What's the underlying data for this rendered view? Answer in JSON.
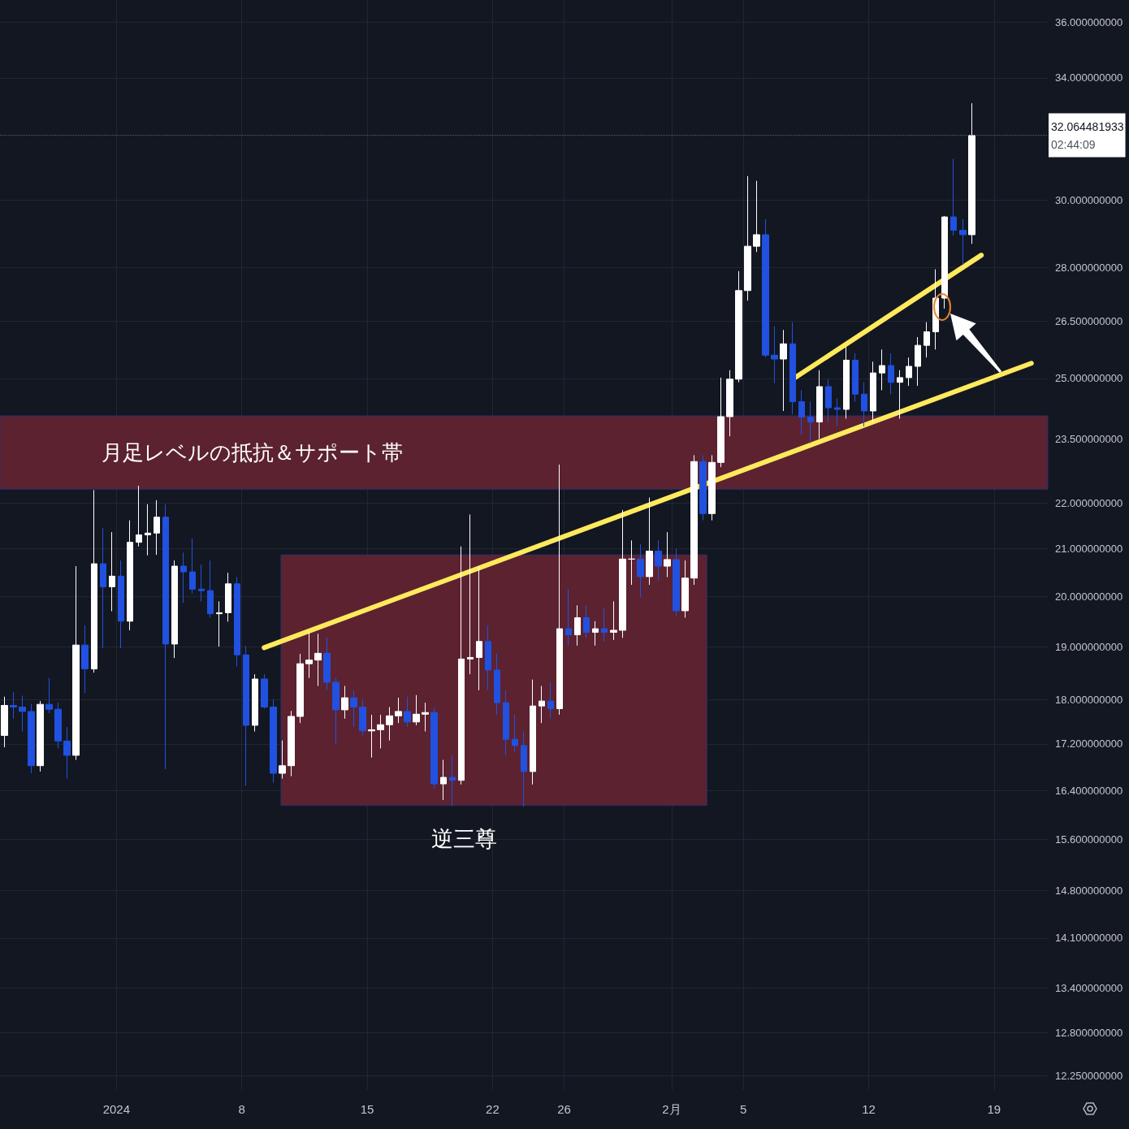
{
  "chart_data": {
    "type": "candlestick",
    "series": [
      {
        "x": [
          "2023-12-25T18:00",
          "2023-12-26T06:00",
          "2023-12-26T18:00",
          "2023-12-27T06:00",
          "2023-12-27T18:00",
          "2023-12-28T06:00",
          "2023-12-28T18:00",
          "2023-12-29T06:00",
          "2023-12-29T18:00",
          "2023-12-30T06:00",
          "2023-12-30T18:00",
          "2023-12-31T06:00",
          "2023-12-31T18:00",
          "2024-01-01T06:00",
          "2024-01-01T18:00",
          "2024-01-02T06:00",
          "2024-01-02T18:00",
          "2024-01-03T06:00",
          "2024-01-03T18:00",
          "2024-01-04T06:00",
          "2024-01-04T18:00",
          "2024-01-05T06:00",
          "2024-01-05T18:00",
          "2024-01-06T06:00",
          "2024-01-06T18:00",
          "2024-01-07T06:00",
          "2024-01-07T18:00",
          "2024-01-08T06:00",
          "2024-01-08T18:00",
          "2024-01-09T06:00",
          "2024-01-09T18:00",
          "2024-01-10T06:00",
          "2024-01-10T18:00",
          "2024-01-11T06:00",
          "2024-01-11T18:00",
          "2024-01-12T06:00",
          "2024-01-12T18:00",
          "2024-01-13T06:00",
          "2024-01-13T18:00",
          "2024-01-14T06:00",
          "2024-01-14T18:00",
          "2024-01-15T06:00",
          "2024-01-15T18:00",
          "2024-01-16T06:00",
          "2024-01-16T18:00",
          "2024-01-17T06:00",
          "2024-01-17T18:00",
          "2024-01-18T06:00",
          "2024-01-18T18:00",
          "2024-01-19T06:00",
          "2024-01-19T18:00",
          "2024-01-20T06:00",
          "2024-01-20T18:00",
          "2024-01-21T06:00",
          "2024-01-21T18:00",
          "2024-01-22T06:00",
          "2024-01-22T18:00",
          "2024-01-23T06:00",
          "2024-01-23T18:00",
          "2024-01-24T06:00",
          "2024-01-24T18:00",
          "2024-01-25T06:00",
          "2024-01-25T18:00",
          "2024-01-26T06:00",
          "2024-01-26T18:00",
          "2024-01-27T06:00",
          "2024-01-27T18:00",
          "2024-01-28T06:00",
          "2024-01-28T18:00",
          "2024-01-29T06:00",
          "2024-01-29T18:00",
          "2024-01-30T06:00",
          "2024-01-30T18:00",
          "2024-01-31T06:00",
          "2024-01-31T18:00",
          "2024-02-01T06:00",
          "2024-02-01T18:00",
          "2024-02-02T06:00",
          "2024-02-02T18:00",
          "2024-02-03T06:00",
          "2024-02-03T18:00",
          "2024-02-04T06:00",
          "2024-02-04T18:00",
          "2024-02-05T06:00",
          "2024-02-05T18:00",
          "2024-02-06T06:00",
          "2024-02-06T18:00",
          "2024-02-07T06:00",
          "2024-02-07T18:00",
          "2024-02-08T06:00",
          "2024-02-08T18:00",
          "2024-02-09T06:00",
          "2024-02-09T18:00",
          "2024-02-10T06:00",
          "2024-02-10T18:00",
          "2024-02-11T06:00",
          "2024-02-11T18:00",
          "2024-02-12T06:00",
          "2024-02-12T18:00",
          "2024-02-13T06:00",
          "2024-02-13T18:00",
          "2024-02-14T06:00",
          "2024-02-14T18:00",
          "2024-02-15T06:00",
          "2024-02-15T18:00",
          "2024-02-16T06:00",
          "2024-02-16T18:00",
          "2024-02-17T06:00",
          "2024-02-17T18:00"
        ],
        "ohlc": [
          [
            17.35,
            18.05,
            17.14,
            17.89
          ],
          [
            17.89,
            18.14,
            17.65,
            17.86
          ],
          [
            17.86,
            18.07,
            17.42,
            17.78
          ],
          [
            17.78,
            17.92,
            16.69,
            16.82
          ],
          [
            16.82,
            17.97,
            16.72,
            17.91
          ],
          [
            17.91,
            18.4,
            17.75,
            17.82
          ],
          [
            17.82,
            17.94,
            17.12,
            17.25
          ],
          [
            17.25,
            17.5,
            16.6,
            17.0
          ],
          [
            17.0,
            20.63,
            16.92,
            19.03
          ],
          [
            19.03,
            19.42,
            18.12,
            18.57
          ],
          [
            18.57,
            22.3,
            18.5,
            20.68
          ],
          [
            20.68,
            21.45,
            18.97,
            20.2
          ],
          [
            20.2,
            21.36,
            19.7,
            20.42
          ],
          [
            20.42,
            20.75,
            18.97,
            19.5
          ],
          [
            19.5,
            21.62,
            19.32,
            21.14
          ],
          [
            21.14,
            22.4,
            21.05,
            21.3
          ],
          [
            21.3,
            21.98,
            20.86,
            21.34
          ],
          [
            21.34,
            22.07,
            20.87,
            21.69
          ],
          [
            21.69,
            21.98,
            16.76,
            19.05
          ],
          [
            19.05,
            20.75,
            18.78,
            20.63
          ],
          [
            20.63,
            20.92,
            19.87,
            20.51
          ],
          [
            20.51,
            21.22,
            20.06,
            20.15
          ],
          [
            20.15,
            20.66,
            19.9,
            20.12
          ],
          [
            20.12,
            20.75,
            19.57,
            19.65
          ],
          [
            19.65,
            19.9,
            19.0,
            19.67
          ],
          [
            19.67,
            20.49,
            19.49,
            20.26
          ],
          [
            20.26,
            20.4,
            18.62,
            18.84
          ],
          [
            18.84,
            19.01,
            16.48,
            17.53
          ],
          [
            17.53,
            18.47,
            17.42,
            18.38
          ],
          [
            18.38,
            18.47,
            17.83,
            17.86
          ],
          [
            17.86,
            18.0,
            16.53,
            16.69
          ],
          [
            16.69,
            17.26,
            16.6,
            16.82
          ],
          [
            16.82,
            17.79,
            16.64,
            17.69
          ],
          [
            17.69,
            18.86,
            17.57,
            18.67
          ],
          [
            18.67,
            19.28,
            18.4,
            18.74
          ],
          [
            18.74,
            19.25,
            18.25,
            18.87
          ],
          [
            18.87,
            19.18,
            18.17,
            18.32
          ],
          [
            18.32,
            18.4,
            17.19,
            17.81
          ],
          [
            17.81,
            18.25,
            17.65,
            18.03
          ],
          [
            18.03,
            18.17,
            17.5,
            17.86
          ],
          [
            17.86,
            18.0,
            17.35,
            17.43
          ],
          [
            17.43,
            17.72,
            16.96,
            17.45
          ],
          [
            17.45,
            17.72,
            17.12,
            17.54
          ],
          [
            17.54,
            17.86,
            17.26,
            17.7
          ],
          [
            17.7,
            18.03,
            17.57,
            17.78
          ],
          [
            17.78,
            18.05,
            17.5,
            17.59
          ],
          [
            17.59,
            18.08,
            17.53,
            17.73
          ],
          [
            17.73,
            17.94,
            17.42,
            17.76
          ],
          [
            17.76,
            17.86,
            16.43,
            16.51
          ],
          [
            16.51,
            16.92,
            16.24,
            16.62
          ],
          [
            16.62,
            17.0,
            16.14,
            16.57
          ],
          [
            16.57,
            21.05,
            16.5,
            18.76
          ],
          [
            18.76,
            21.75,
            18.47,
            18.79
          ],
          [
            18.79,
            20.63,
            18.17,
            19.1
          ],
          [
            19.1,
            19.42,
            18.17,
            18.55
          ],
          [
            18.55,
            18.86,
            17.72,
            17.94
          ],
          [
            17.94,
            18.17,
            17.0,
            17.28
          ],
          [
            17.28,
            17.72,
            17.06,
            17.17
          ],
          [
            17.17,
            17.42,
            16.13,
            16.72
          ],
          [
            16.72,
            18.37,
            16.5,
            17.88
          ],
          [
            17.88,
            18.25,
            17.57,
            17.97
          ],
          [
            17.97,
            18.32,
            17.65,
            17.83
          ],
          [
            17.83,
            22.89,
            17.72,
            19.35
          ],
          [
            19.35,
            20.15,
            19.02,
            19.23
          ],
          [
            19.23,
            19.82,
            19.02,
            19.57
          ],
          [
            19.57,
            19.82,
            19.17,
            19.28
          ],
          [
            19.28,
            19.5,
            19.02,
            19.35
          ],
          [
            19.35,
            19.77,
            19.1,
            19.28
          ],
          [
            19.28,
            19.9,
            19.13,
            19.32
          ],
          [
            19.32,
            21.85,
            19.17,
            20.78
          ],
          [
            20.78,
            21.18,
            20.24,
            20.78
          ],
          [
            20.78,
            21.1,
            19.98,
            20.41
          ],
          [
            20.41,
            22.13,
            20.24,
            20.95
          ],
          [
            20.95,
            21.18,
            20.32,
            20.63
          ],
          [
            20.63,
            21.36,
            20.4,
            20.77
          ],
          [
            20.77,
            21.0,
            19.6,
            19.71
          ],
          [
            19.71,
            20.75,
            19.57,
            20.38
          ],
          [
            20.38,
            23.11,
            20.24,
            22.96
          ],
          [
            22.96,
            23.11,
            21.62,
            21.77
          ],
          [
            21.77,
            23.11,
            21.62,
            22.94
          ],
          [
            22.94,
            25.02,
            22.83,
            24.04
          ],
          [
            24.04,
            25.21,
            23.56,
            24.98
          ],
          [
            24.98,
            27.9,
            24.9,
            27.35
          ],
          [
            27.35,
            30.75,
            27.07,
            28.62
          ],
          [
            28.62,
            30.6,
            28.45,
            28.96
          ],
          [
            28.96,
            29.42,
            25.54,
            25.6
          ],
          [
            25.6,
            26.37,
            24.88,
            25.5
          ],
          [
            25.5,
            26.27,
            24.18,
            25.9
          ],
          [
            25.9,
            26.48,
            24.1,
            24.41
          ],
          [
            24.41,
            24.7,
            23.6,
            24.03
          ],
          [
            24.03,
            24.41,
            23.4,
            23.91
          ],
          [
            23.91,
            25.21,
            23.5,
            24.79
          ],
          [
            24.79,
            24.98,
            23.9,
            24.26
          ],
          [
            24.26,
            24.5,
            23.8,
            24.22
          ],
          [
            24.22,
            25.82,
            23.99,
            25.47
          ],
          [
            25.47,
            25.65,
            24.41,
            24.6
          ],
          [
            24.6,
            24.9,
            23.8,
            24.18
          ],
          [
            24.18,
            25.43,
            23.9,
            25.14
          ],
          [
            25.14,
            25.75,
            24.7,
            25.33
          ],
          [
            25.33,
            25.65,
            24.6,
            24.9
          ],
          [
            24.9,
            25.21,
            23.99,
            25.02
          ],
          [
            25.02,
            25.54,
            24.81,
            25.31
          ],
          [
            25.31,
            26.08,
            24.81,
            25.86
          ],
          [
            25.86,
            26.48,
            25.54,
            26.22
          ],
          [
            26.22,
            27.95,
            25.75,
            27.14
          ],
          [
            27.14,
            29.52,
            26.85,
            29.49
          ],
          [
            29.49,
            31.3,
            28.93,
            29.09
          ],
          [
            29.09,
            29.42,
            28.08,
            28.96
          ],
          [
            28.96,
            33.13,
            28.69,
            32.06
          ]
        ],
        "colors": [
          "#ffffff",
          "#2151e0",
          "#2151e0",
          "#2151e0",
          "#ffffff",
          "#2151e0",
          "#2151e0",
          "#2151e0",
          "#ffffff",
          "#2151e0",
          "#ffffff",
          "#2151e0",
          "#ffffff",
          "#2151e0",
          "#ffffff",
          "#ffffff",
          "#ffffff",
          "#ffffff",
          "#2151e0",
          "#ffffff",
          "#2151e0",
          "#2151e0",
          "#2151e0",
          "#2151e0",
          "#ffffff",
          "#ffffff",
          "#2151e0",
          "#2151e0",
          "#ffffff",
          "#2151e0",
          "#2151e0",
          "#ffffff",
          "#ffffff",
          "#ffffff",
          "#ffffff",
          "#ffffff",
          "#2151e0",
          "#2151e0",
          "#ffffff",
          "#2151e0",
          "#2151e0",
          "#ffffff",
          "#ffffff",
          "#ffffff",
          "#ffffff",
          "#2151e0",
          "#ffffff",
          "#ffffff",
          "#2151e0",
          "#ffffff",
          "#2151e0",
          "#ffffff",
          "#ffffff",
          "#ffffff",
          "#2151e0",
          "#2151e0",
          "#2151e0",
          "#2151e0",
          "#2151e0",
          "#ffffff",
          "#ffffff",
          "#2151e0",
          "#ffffff",
          "#2151e0",
          "#ffffff",
          "#2151e0",
          "#ffffff",
          "#2151e0",
          "#ffffff",
          "#ffffff",
          "#ffffff",
          "#2151e0",
          "#ffffff",
          "#2151e0",
          "#ffffff",
          "#2151e0",
          "#ffffff",
          "#ffffff",
          "#2151e0",
          "#ffffff",
          "#ffffff",
          "#ffffff",
          "#ffffff",
          "#ffffff",
          "#ffffff",
          "#2151e0",
          "#2151e0",
          "#ffffff",
          "#2151e0",
          "#2151e0",
          "#2151e0",
          "#ffffff",
          "#2151e0",
          "#2151e0",
          "#ffffff",
          "#2151e0",
          "#2151e0",
          "#ffffff",
          "#ffffff",
          "#2151e0",
          "#ffffff",
          "#ffffff",
          "#ffffff",
          "#ffffff",
          "#ffffff",
          "#ffffff",
          "#2151e0",
          "#2151e0",
          "#ffffff"
        ]
      },
      {
        "type": "line",
        "x": [
          "2024-01-10T04:30",
          "2024-02-02T23:15"
        ],
        "values": [
          null,
          null
        ],
        "lower": [
          16.15,
          16.15
        ],
        "upper": [
          20.87,
          20.87
        ],
        "color": "#5c2230"
      },
      {
        "type": "line",
        "x": [
          "2024-01-09T06:00",
          "2024-02-21T02:00"
        ],
        "values": [
          18.98,
          25.39
        ],
        "color": "#ffe95c",
        "line_style": "solid"
      },
      {
        "type": "line",
        "x": [
          "2024-02-07T20:00",
          "2024-02-18T07:00"
        ],
        "values": [
          25.0,
          28.36
        ],
        "color": "#ffe95c",
        "line_style": "solid"
      }
    ],
    "xlim": [
      "2023-12-25T12:00",
      "2024-02-22T00:00"
    ],
    "xticks": [
      {
        "value": "2024-01-01",
        "label": "2024"
      },
      {
        "value": "2024-01-08",
        "label": "8"
      },
      {
        "value": "2024-01-15",
        "label": "15"
      },
      {
        "value": "2024-01-22",
        "label": "22"
      },
      {
        "value": "2024-01-26",
        "label": "26"
      },
      {
        "value": "2024-02-01",
        "label": "2月"
      },
      {
        "value": "2024-02-05",
        "label": "5"
      },
      {
        "value": "2024-02-12",
        "label": "12"
      },
      {
        "value": "2024-02-19",
        "label": "19"
      }
    ],
    "ylim": [
      12.07,
      36.82
    ],
    "yticks": [
      {
        "value": 36,
        "label": "36.000000000"
      },
      {
        "value": 34,
        "label": "34.000000000"
      },
      {
        "value": 30,
        "label": "30.000000000"
      },
      {
        "value": 28,
        "label": "28.000000000"
      },
      {
        "value": 26.5,
        "label": "26.500000000"
      },
      {
        "value": 25,
        "label": "25.000000000"
      },
      {
        "value": 23.5,
        "label": "23.500000000"
      },
      {
        "value": 22,
        "label": "22.000000000"
      },
      {
        "value": 21,
        "label": "21.000000000"
      },
      {
        "value": 20,
        "label": "20.000000000"
      },
      {
        "value": 19,
        "label": "19.000000000"
      },
      {
        "value": 18,
        "label": "18.000000000"
      },
      {
        "value": 17.2,
        "label": "17.200000000"
      },
      {
        "value": 16.4,
        "label": "16.400000000"
      },
      {
        "value": 15.6,
        "label": "15.600000000"
      },
      {
        "value": 14.8,
        "label": "14.800000000"
      },
      {
        "value": 14.1,
        "label": "14.100000000"
      },
      {
        "value": 13.4,
        "label": "13.400000000"
      },
      {
        "value": 12.8,
        "label": "12.800000000"
      },
      {
        "value": 12.25,
        "label": "12.250000000"
      }
    ],
    "log": true,
    "grid": true,
    "bands": [
      {
        "axis": "y",
        "from": 22.32,
        "to": 24.06,
        "label": "月足レベルの抵抗＆サポート帯",
        "color": "#5c2230"
      }
    ],
    "ref_lines": [
      {
        "axis": "y",
        "value": 32.064481933,
        "label": "32.064481933",
        "color": "#5d606b",
        "line_style": "dotted"
      }
    ],
    "annotations": [
      {
        "text": "逆三尊",
        "x": "2024-01-20T10:00",
        "y": 16.15
      },
      "02:44:09"
    ]
  }
}
